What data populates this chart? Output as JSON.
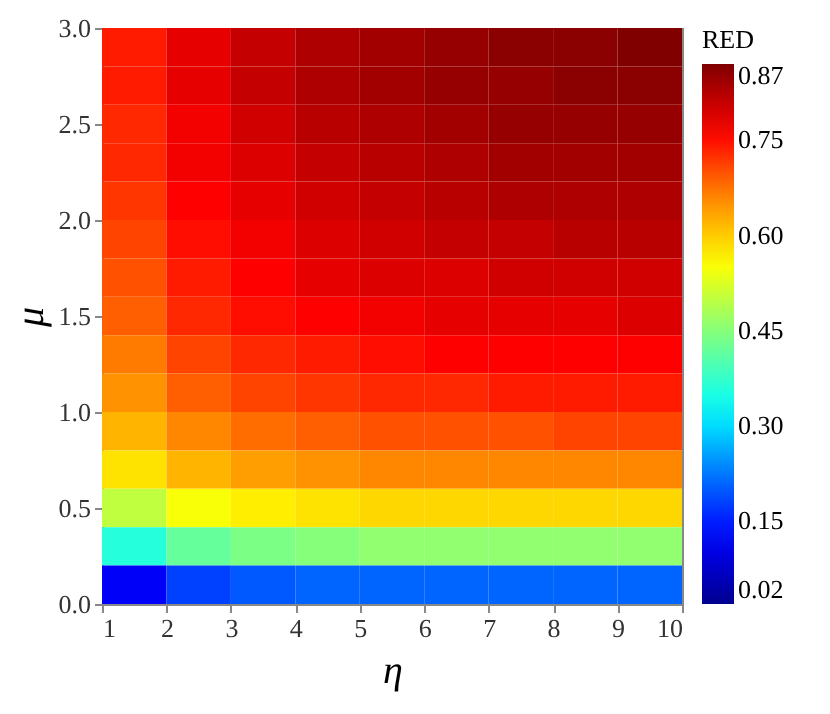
{
  "chart_data": {
    "type": "heatmap",
    "xlabel": "η",
    "ylabel": "μ",
    "clabel": "RED",
    "x": [
      1.5,
      2.5,
      3.5,
      4.5,
      5.5,
      6.5,
      7.5,
      8.5,
      9.5
    ],
    "xlim": [
      1,
      10
    ],
    "xticks": [
      1,
      2,
      3,
      4,
      5,
      6,
      7,
      8,
      9,
      10
    ],
    "ylim": [
      0,
      3
    ],
    "yticks": [
      {
        "value": 0,
        "label": "0.0"
      },
      0.5,
      {
        "value": 1,
        "label": "1.0"
      },
      1.5,
      {
        "value": 2,
        "label": "2.0"
      },
      2.5,
      {
        "value": 3,
        "label": "3.0"
      }
    ],
    "clim": [
      0.02,
      0.87
    ],
    "cticks": [
      0.02,
      0.15,
      {
        "value": 0.3,
        "label": "0.30"
      },
      0.45,
      {
        "value": 0.6,
        "label": "0.60"
      },
      0.75,
      0.87
    ],
    "cells": [
      [
        0.74,
        0.78,
        0.81,
        0.83,
        0.84,
        0.85,
        0.86,
        0.86,
        0.87
      ],
      [
        0.74,
        0.78,
        0.81,
        0.83,
        0.84,
        0.85,
        0.85,
        0.86,
        0.86
      ],
      [
        0.73,
        0.77,
        0.8,
        0.82,
        0.83,
        0.84,
        0.85,
        0.85,
        0.85
      ],
      [
        0.73,
        0.77,
        0.79,
        0.81,
        0.82,
        0.83,
        0.84,
        0.84,
        0.84
      ],
      [
        0.72,
        0.76,
        0.78,
        0.8,
        0.81,
        0.82,
        0.83,
        0.83,
        0.83
      ],
      [
        0.71,
        0.75,
        0.77,
        0.79,
        0.8,
        0.81,
        0.81,
        0.82,
        0.82
      ],
      [
        0.7,
        0.74,
        0.76,
        0.78,
        0.79,
        0.79,
        0.8,
        0.8,
        0.8
      ],
      [
        0.69,
        0.73,
        0.75,
        0.76,
        0.77,
        0.78,
        0.78,
        0.78,
        0.79
      ],
      [
        0.67,
        0.71,
        0.73,
        0.74,
        0.75,
        0.76,
        0.76,
        0.76,
        0.76
      ],
      [
        0.65,
        0.69,
        0.71,
        0.72,
        0.73,
        0.73,
        0.74,
        0.74,
        0.74
      ],
      [
        0.62,
        0.66,
        0.68,
        0.69,
        0.7,
        0.7,
        0.7,
        0.71,
        0.71
      ],
      [
        0.58,
        0.62,
        0.64,
        0.65,
        0.66,
        0.66,
        0.66,
        0.66,
        0.66
      ],
      [
        0.5,
        0.55,
        0.57,
        0.58,
        0.59,
        0.59,
        0.59,
        0.59,
        0.59
      ],
      [
        0.36,
        0.42,
        0.44,
        0.45,
        0.46,
        0.46,
        0.46,
        0.46,
        0.46
      ],
      [
        0.12,
        0.18,
        0.2,
        0.21,
        0.21,
        0.21,
        0.21,
        0.21,
        0.21
      ]
    ]
  }
}
